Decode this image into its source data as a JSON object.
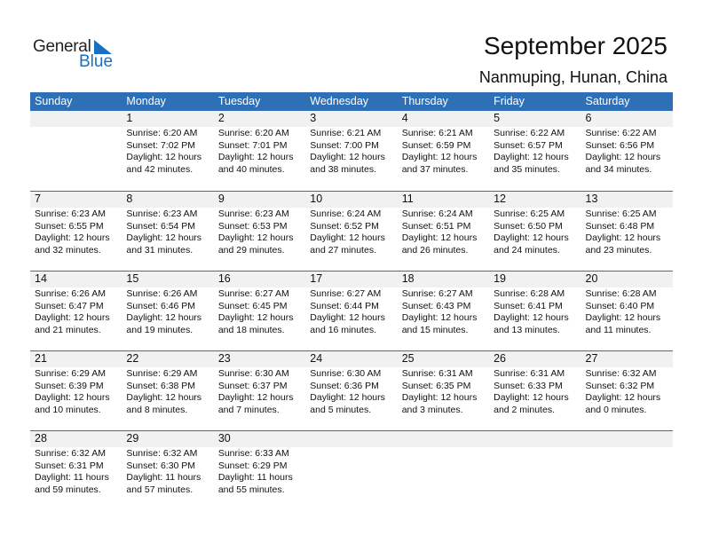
{
  "logo": {
    "text_general": "General",
    "text_blue": "Blue",
    "accent": "#1a6fbf"
  },
  "title": "September 2025",
  "location": "Nanmuping, Hunan, China",
  "colors": {
    "header_bg": "#2e6fb5",
    "date_strip": "#f1f1f1"
  },
  "weekdays": [
    "Sunday",
    "Monday",
    "Tuesday",
    "Wednesday",
    "Thursday",
    "Friday",
    "Saturday"
  ],
  "weeks": [
    [
      null,
      {
        "day": "1",
        "sunrise": "Sunrise: 6:20 AM",
        "sunset": "Sunset: 7:02 PM",
        "daylight1": "Daylight: 12 hours",
        "daylight2": "and 42 minutes."
      },
      {
        "day": "2",
        "sunrise": "Sunrise: 6:20 AM",
        "sunset": "Sunset: 7:01 PM",
        "daylight1": "Daylight: 12 hours",
        "daylight2": "and 40 minutes."
      },
      {
        "day": "3",
        "sunrise": "Sunrise: 6:21 AM",
        "sunset": "Sunset: 7:00 PM",
        "daylight1": "Daylight: 12 hours",
        "daylight2": "and 38 minutes."
      },
      {
        "day": "4",
        "sunrise": "Sunrise: 6:21 AM",
        "sunset": "Sunset: 6:59 PM",
        "daylight1": "Daylight: 12 hours",
        "daylight2": "and 37 minutes."
      },
      {
        "day": "5",
        "sunrise": "Sunrise: 6:22 AM",
        "sunset": "Sunset: 6:57 PM",
        "daylight1": "Daylight: 12 hours",
        "daylight2": "and 35 minutes."
      },
      {
        "day": "6",
        "sunrise": "Sunrise: 6:22 AM",
        "sunset": "Sunset: 6:56 PM",
        "daylight1": "Daylight: 12 hours",
        "daylight2": "and 34 minutes."
      }
    ],
    [
      {
        "day": "7",
        "sunrise": "Sunrise: 6:23 AM",
        "sunset": "Sunset: 6:55 PM",
        "daylight1": "Daylight: 12 hours",
        "daylight2": "and 32 minutes."
      },
      {
        "day": "8",
        "sunrise": "Sunrise: 6:23 AM",
        "sunset": "Sunset: 6:54 PM",
        "daylight1": "Daylight: 12 hours",
        "daylight2": "and 31 minutes."
      },
      {
        "day": "9",
        "sunrise": "Sunrise: 6:23 AM",
        "sunset": "Sunset: 6:53 PM",
        "daylight1": "Daylight: 12 hours",
        "daylight2": "and 29 minutes."
      },
      {
        "day": "10",
        "sunrise": "Sunrise: 6:24 AM",
        "sunset": "Sunset: 6:52 PM",
        "daylight1": "Daylight: 12 hours",
        "daylight2": "and 27 minutes."
      },
      {
        "day": "11",
        "sunrise": "Sunrise: 6:24 AM",
        "sunset": "Sunset: 6:51 PM",
        "daylight1": "Daylight: 12 hours",
        "daylight2": "and 26 minutes."
      },
      {
        "day": "12",
        "sunrise": "Sunrise: 6:25 AM",
        "sunset": "Sunset: 6:50 PM",
        "daylight1": "Daylight: 12 hours",
        "daylight2": "and 24 minutes."
      },
      {
        "day": "13",
        "sunrise": "Sunrise: 6:25 AM",
        "sunset": "Sunset: 6:48 PM",
        "daylight1": "Daylight: 12 hours",
        "daylight2": "and 23 minutes."
      }
    ],
    [
      {
        "day": "14",
        "sunrise": "Sunrise: 6:26 AM",
        "sunset": "Sunset: 6:47 PM",
        "daylight1": "Daylight: 12 hours",
        "daylight2": "and 21 minutes."
      },
      {
        "day": "15",
        "sunrise": "Sunrise: 6:26 AM",
        "sunset": "Sunset: 6:46 PM",
        "daylight1": "Daylight: 12 hours",
        "daylight2": "and 19 minutes."
      },
      {
        "day": "16",
        "sunrise": "Sunrise: 6:27 AM",
        "sunset": "Sunset: 6:45 PM",
        "daylight1": "Daylight: 12 hours",
        "daylight2": "and 18 minutes."
      },
      {
        "day": "17",
        "sunrise": "Sunrise: 6:27 AM",
        "sunset": "Sunset: 6:44 PM",
        "daylight1": "Daylight: 12 hours",
        "daylight2": "and 16 minutes."
      },
      {
        "day": "18",
        "sunrise": "Sunrise: 6:27 AM",
        "sunset": "Sunset: 6:43 PM",
        "daylight1": "Daylight: 12 hours",
        "daylight2": "and 15 minutes."
      },
      {
        "day": "19",
        "sunrise": "Sunrise: 6:28 AM",
        "sunset": "Sunset: 6:41 PM",
        "daylight1": "Daylight: 12 hours",
        "daylight2": "and 13 minutes."
      },
      {
        "day": "20",
        "sunrise": "Sunrise: 6:28 AM",
        "sunset": "Sunset: 6:40 PM",
        "daylight1": "Daylight: 12 hours",
        "daylight2": "and 11 minutes."
      }
    ],
    [
      {
        "day": "21",
        "sunrise": "Sunrise: 6:29 AM",
        "sunset": "Sunset: 6:39 PM",
        "daylight1": "Daylight: 12 hours",
        "daylight2": "and 10 minutes."
      },
      {
        "day": "22",
        "sunrise": "Sunrise: 6:29 AM",
        "sunset": "Sunset: 6:38 PM",
        "daylight1": "Daylight: 12 hours",
        "daylight2": "and 8 minutes."
      },
      {
        "day": "23",
        "sunrise": "Sunrise: 6:30 AM",
        "sunset": "Sunset: 6:37 PM",
        "daylight1": "Daylight: 12 hours",
        "daylight2": "and 7 minutes."
      },
      {
        "day": "24",
        "sunrise": "Sunrise: 6:30 AM",
        "sunset": "Sunset: 6:36 PM",
        "daylight1": "Daylight: 12 hours",
        "daylight2": "and 5 minutes."
      },
      {
        "day": "25",
        "sunrise": "Sunrise: 6:31 AM",
        "sunset": "Sunset: 6:35 PM",
        "daylight1": "Daylight: 12 hours",
        "daylight2": "and 3 minutes."
      },
      {
        "day": "26",
        "sunrise": "Sunrise: 6:31 AM",
        "sunset": "Sunset: 6:33 PM",
        "daylight1": "Daylight: 12 hours",
        "daylight2": "and 2 minutes."
      },
      {
        "day": "27",
        "sunrise": "Sunrise: 6:32 AM",
        "sunset": "Sunset: 6:32 PM",
        "daylight1": "Daylight: 12 hours",
        "daylight2": "and 0 minutes."
      }
    ],
    [
      {
        "day": "28",
        "sunrise": "Sunrise: 6:32 AM",
        "sunset": "Sunset: 6:31 PM",
        "daylight1": "Daylight: 11 hours",
        "daylight2": "and 59 minutes."
      },
      {
        "day": "29",
        "sunrise": "Sunrise: 6:32 AM",
        "sunset": "Sunset: 6:30 PM",
        "daylight1": "Daylight: 11 hours",
        "daylight2": "and 57 minutes."
      },
      {
        "day": "30",
        "sunrise": "Sunrise: 6:33 AM",
        "sunset": "Sunset: 6:29 PM",
        "daylight1": "Daylight: 11 hours",
        "daylight2": "and 55 minutes."
      },
      null,
      null,
      null,
      null
    ]
  ]
}
